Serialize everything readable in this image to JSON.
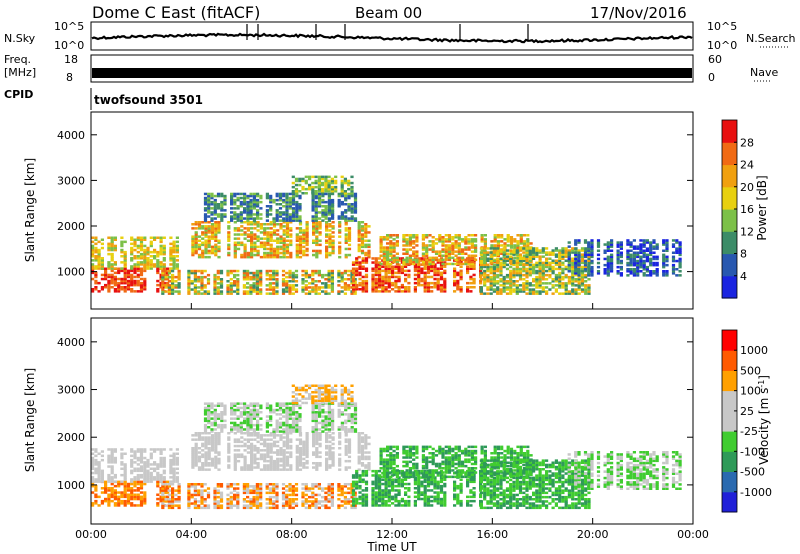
{
  "header": {
    "station": "Dome C East (fitACF)",
    "beam": "Beam 00",
    "date": "17/Nov/2016"
  },
  "status_panels": {
    "nsky_label": "N.Sky",
    "nsky_ticks": [
      "10^5",
      "10^0"
    ],
    "nsky_right_ticks": [
      "10^5",
      "10^0"
    ],
    "nsearch_label": "N.Search",
    "freq_label": "Freq.",
    "freq_unit": "[MHz]",
    "freq_ticks": [
      "18",
      "8"
    ],
    "nave_ticks": [
      "60",
      "0"
    ],
    "nave_label": "Nave",
    "cpid_label": "CPID",
    "cpid_value": "twofsound 3501"
  },
  "colors": {
    "power_scale": [
      "#1a24e0",
      "#2858b0",
      "#3c8c68",
      "#7cc048",
      "#e8d010",
      "#f0a010",
      "#f06a14",
      "#e81010"
    ],
    "velocity_scale": [
      "#ff0000",
      "#ff5a00",
      "#ffa000",
      "#c8c8c8",
      "#c8c8c8",
      "#40cc30",
      "#2e9a58",
      "#2a6ab0",
      "#2020d8"
    ],
    "text": "#000000"
  },
  "chart_data": [
    {
      "type": "heatmap",
      "name": "power",
      "xlabel": "",
      "ylabel": "Slant Range [km]",
      "ylim": [
        180,
        4500
      ],
      "yticks": [
        "1000",
        "2000",
        "3000",
        "4000"
      ],
      "colorbar_label": "Power [dB]",
      "colorbar_ticks": [
        "4",
        "8",
        "12",
        "16",
        "20",
        "24",
        "28"
      ],
      "x_range_ut": [
        0,
        24
      ]
    },
    {
      "type": "heatmap",
      "name": "velocity",
      "xlabel": "Time UT",
      "ylabel": "Slant Range [km]",
      "ylim": [
        180,
        4500
      ],
      "yticks": [
        "1000",
        "2000",
        "3000",
        "4000"
      ],
      "xticks": [
        "00:00",
        "04:00",
        "08:00",
        "12:00",
        "16:00",
        "20:00",
        "00:00"
      ],
      "colorbar_label": "Velocity [m s",
      "colorbar_label_sup": "-1",
      "colorbar_label_end": "]",
      "colorbar_ticks": [
        "1000",
        "500",
        "100",
        "25",
        "-25",
        "-100",
        "-500",
        "-1000"
      ]
    }
  ]
}
